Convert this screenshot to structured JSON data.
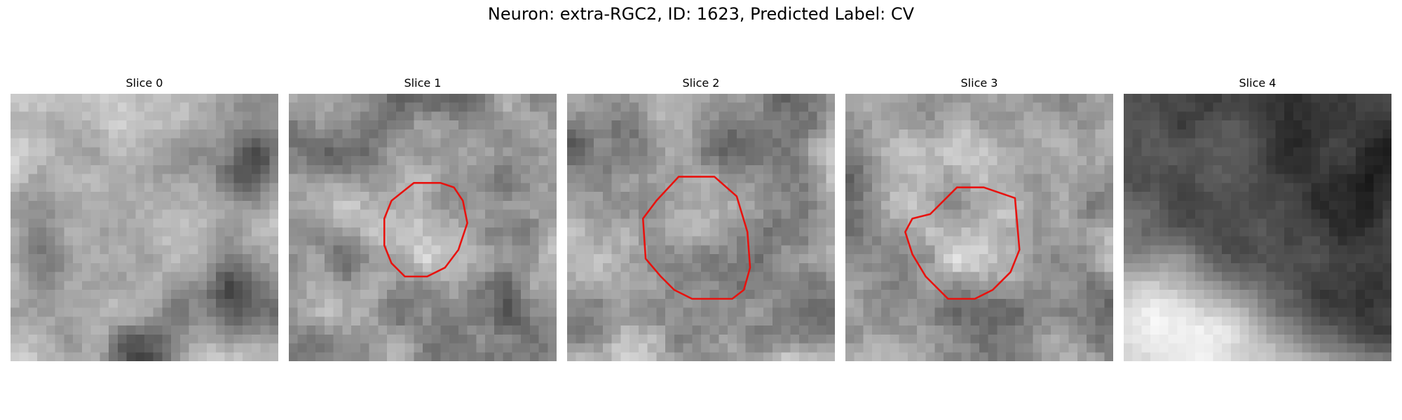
{
  "figure": {
    "title": "Neuron: extra-RGC2, ID: 1623, Predicted Label: CV"
  },
  "panels": [
    {
      "title": "Slice 0",
      "has_outline": false,
      "tone": "light"
    },
    {
      "title": "Slice 1",
      "has_outline": true,
      "tone": "mixed"
    },
    {
      "title": "Slice 2",
      "has_outline": true,
      "tone": "mixed"
    },
    {
      "title": "Slice 3",
      "has_outline": true,
      "tone": "mixed"
    },
    {
      "title": "Slice 4",
      "has_outline": false,
      "tone": "dark"
    }
  ],
  "colors": {
    "outline": "#e8120e",
    "background": "#ffffff"
  }
}
